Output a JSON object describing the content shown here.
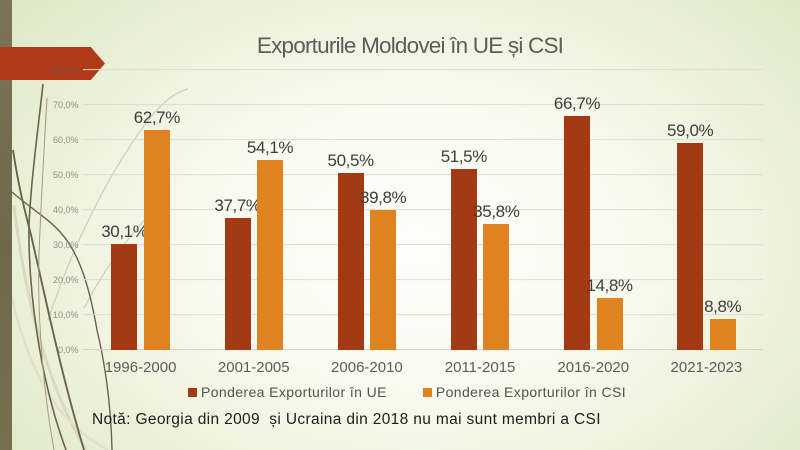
{
  "slide": {
    "title": "Exporturile Moldovei în UE și CSI"
  },
  "chart_data": {
    "type": "bar",
    "title": "Exporturile Moldovei în UE și CSI",
    "categories": [
      "1996-2000",
      "2001-2005",
      "2006-2010",
      "2011-2015",
      "2016-2020",
      "2021-2023"
    ],
    "series": [
      {
        "name": "Ponderea Exporturilor în UE",
        "color": "#a43a14",
        "values": [
          30.1,
          37.7,
          50.5,
          51.5,
          66.7,
          59.0
        ],
        "labels": [
          "30,1%",
          "37,7%",
          "50,5%",
          "51,5%",
          "66,7%",
          "59,0%"
        ]
      },
      {
        "name": "Ponderea Exporturilor în CSI",
        "color": "#df8320",
        "values": [
          62.7,
          54.1,
          39.8,
          35.8,
          14.8,
          8.8
        ],
        "labels": [
          "62,7%",
          "54,1%",
          "39,8%",
          "35,8%",
          "14,8%",
          "8,8%"
        ]
      }
    ],
    "y_axis": {
      "min": 0,
      "max": 80,
      "step": 10,
      "tick_labels": [
        "0,0%",
        "10,0%",
        "20,0%",
        "30,0%",
        "40,0%",
        "50,0%",
        "60,0%",
        "70,0%",
        "80,0%"
      ]
    },
    "grid": true,
    "legend_position": "bottom"
  },
  "legend": {
    "items": [
      {
        "label": "Ponderea Exporturilor în UE",
        "color": "#a43a14"
      },
      {
        "label": "Ponderea Exporturilor în CSI",
        "color": "#df8320"
      }
    ]
  },
  "note": {
    "text": "Notă: Georgia din 2009  și Ucraina din 2018 nu mai sunt membri a CSI"
  },
  "colors": {
    "accent_red": "#a43a14",
    "accent_orange": "#df8320",
    "arrow_red": "#b03a19",
    "side_stripe": "#746d50",
    "background_edge": "#e0e8c6",
    "background_center": "#fdfdf8"
  }
}
